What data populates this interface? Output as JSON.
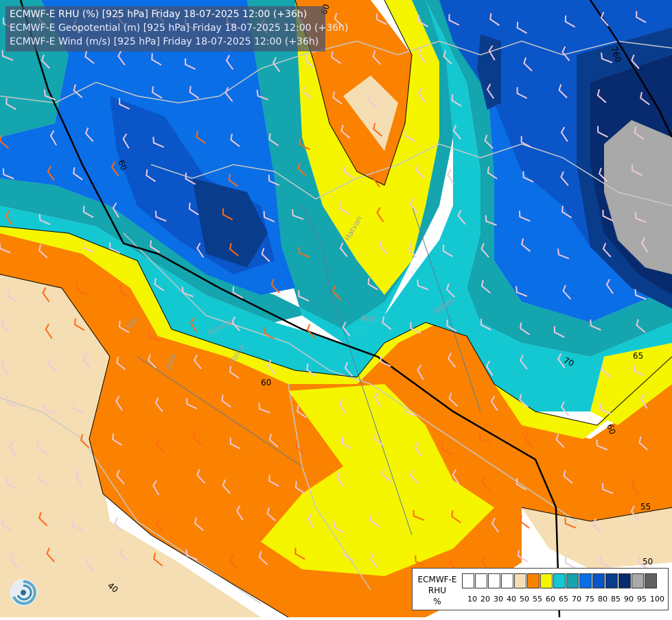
{
  "title": {
    "line1": "ECMWF-E RHU (%) [925 hPa] Friday 18-07-2025 12:00 (+36h)",
    "line2": "ECMWF-E Geopotential (m) [925 hPa] Friday 18-07-2025 12:00 (+36h)",
    "line3": "ECMWF-E Wind (m/s) [925 hPa] Friday 18-07-2025 12:00 (+36h)"
  },
  "legend": {
    "title_lines": [
      "ECMWF-E",
      "RHU",
      "%"
    ],
    "ticks": [
      "10",
      "20",
      "30",
      "40",
      "50",
      "55",
      "60",
      "65",
      "70",
      "75",
      "80",
      "85",
      "90",
      "95",
      "100"
    ],
    "colors": [
      "#ffffff",
      "#ffffff",
      "#ffffff",
      "#ffffff",
      "#f5deb3",
      "#fa8200",
      "#f5f500",
      "#14c8d2",
      "#14a5af",
      "#0a6ee6",
      "#0a55c8",
      "#0a3c8c",
      "#082a6e",
      "#a9a9a9",
      "#606060"
    ]
  },
  "contour_labels": [
    "60",
    "760",
    "60",
    "60",
    "70",
    "65",
    "60",
    "55",
    "50",
    "40"
  ],
  "place_labels": [
    "Hatvan",
    "Pest",
    "Békés",
    "Vas",
    "Zala",
    "Tolna",
    "Somogy"
  ],
  "logo": "ecmwf-swirl-logo"
}
